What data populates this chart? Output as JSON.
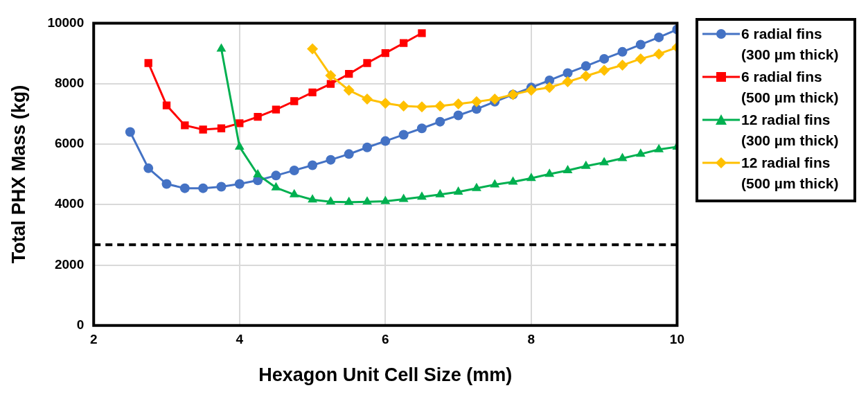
{
  "chart_data": {
    "type": "line",
    "xlabel": "Hexagon Unit Cell Size (mm)",
    "ylabel": "Total PHX Mass (kg)",
    "xlim": [
      2,
      10
    ],
    "xticks": [
      2,
      4,
      6,
      8,
      10
    ],
    "ylim": [
      0,
      10000
    ],
    "yticks": [
      0,
      2000,
      4000,
      6000,
      8000,
      10000
    ],
    "grid": true,
    "legend": "right",
    "line_style": "solid",
    "ref_lines": [
      {
        "axis": "y",
        "value": 2670,
        "color": "#000000",
        "line_style": "dashed"
      }
    ],
    "series": [
      {
        "name": "6 radial fins (300 µm thick)",
        "color": "#4472c4",
        "marker": "circle",
        "x": [
          2.5,
          2.75,
          3,
          3.25,
          3.5,
          3.75,
          4,
          4.25,
          4.5,
          4.75,
          5,
          5.25,
          5.5,
          5.75,
          6,
          6.25,
          6.5,
          6.75,
          7,
          7.25,
          7.5,
          7.75,
          8,
          8.25,
          8.5,
          8.75,
          9,
          9.25,
          9.5,
          9.75,
          10
        ],
        "values": [
          6400,
          5200,
          4680,
          4540,
          4540,
          4590,
          4680,
          4800,
          4960,
          5130,
          5300,
          5480,
          5670,
          5890,
          6100,
          6310,
          6520,
          6740,
          6950,
          7160,
          7400,
          7640,
          7870,
          8110,
          8350,
          8580,
          8820,
          9050,
          9290,
          9530,
          9790
        ]
      },
      {
        "name": "6 radial fins (500 µm thick)",
        "color": "#ff0000",
        "marker": "square",
        "x": [
          2.75,
          3,
          3.25,
          3.5,
          3.75,
          4,
          4.25,
          4.5,
          4.75,
          5,
          5.25,
          5.5,
          5.75,
          6,
          6.25,
          6.5
        ],
        "values": [
          8680,
          7280,
          6620,
          6480,
          6520,
          6690,
          6900,
          7140,
          7420,
          7710,
          7990,
          8320,
          8680,
          9010,
          9340,
          9670
        ]
      },
      {
        "name": "12 radial fins (300 µm thick)",
        "color": "#00b050",
        "marker": "triangle",
        "x": [
          3.75,
          4,
          4.25,
          4.5,
          4.75,
          5,
          5.25,
          5.5,
          5.75,
          6,
          6.25,
          6.5,
          6.75,
          7,
          7.25,
          7.5,
          7.75,
          8,
          8.25,
          8.5,
          8.75,
          9,
          9.25,
          9.5,
          9.75,
          10
        ],
        "values": [
          9150,
          5910,
          4990,
          4560,
          4330,
          4160,
          4090,
          4080,
          4090,
          4110,
          4180,
          4250,
          4330,
          4420,
          4540,
          4660,
          4750,
          4870,
          5010,
          5130,
          5270,
          5390,
          5530,
          5670,
          5820,
          5910
        ]
      },
      {
        "name": "12 radial fins (500 µm thick)",
        "color": "#ffc000",
        "marker": "diamond",
        "x": [
          5,
          5.25,
          5.5,
          5.75,
          6,
          6.25,
          6.5,
          6.75,
          7,
          7.25,
          7.5,
          7.75,
          8,
          8.25,
          8.5,
          8.75,
          9,
          9.25,
          9.5,
          9.75,
          10
        ],
        "values": [
          9150,
          8270,
          7780,
          7490,
          7350,
          7260,
          7230,
          7260,
          7330,
          7400,
          7490,
          7640,
          7780,
          7870,
          8060,
          8250,
          8440,
          8610,
          8820,
          8980,
          9200
        ]
      }
    ]
  }
}
